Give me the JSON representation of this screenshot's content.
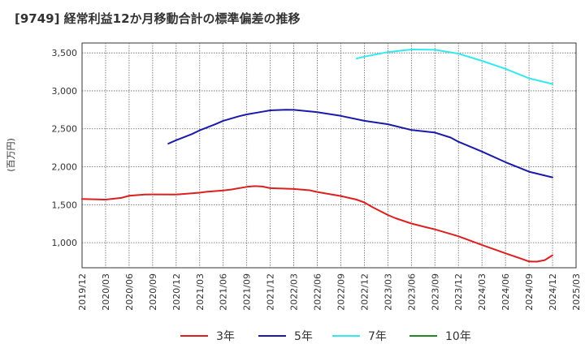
{
  "title": "[9749]  経常利益12か月移動合計の標準偏差の推移",
  "chart_data": {
    "type": "line",
    "title": "[9749]  経常利益12か月移動合計の標準偏差の推移",
    "ylabel": "(百万円)",
    "xlabel": "",
    "x_ticks": [
      "2019/12",
      "2020/03",
      "2020/06",
      "2020/09",
      "2020/12",
      "2021/03",
      "2021/06",
      "2021/09",
      "2021/12",
      "2022/03",
      "2022/06",
      "2022/09",
      "2022/12",
      "2023/03",
      "2023/06",
      "2023/09",
      "2023/12",
      "2024/03",
      "2024/06",
      "2024/09",
      "2024/12",
      "2025/03"
    ],
    "y_ticks": [
      "1,000",
      "1,500",
      "2,000",
      "2,500",
      "3,000",
      "3,500"
    ],
    "y_tick_values": [
      1000,
      1500,
      2000,
      2500,
      3000,
      3500
    ],
    "ylim": [
      670,
      3630
    ],
    "grid": true,
    "legend_position": "bottom",
    "series": [
      {
        "name": "3年",
        "color": "#dd1f1f",
        "points": [
          [
            "2019/12",
            1575
          ],
          [
            "2020/02",
            1570
          ],
          [
            "2020/03",
            1568
          ],
          [
            "2020/05",
            1590
          ],
          [
            "2020/06",
            1618
          ],
          [
            "2020/08",
            1635
          ],
          [
            "2020/09",
            1636
          ],
          [
            "2020/12",
            1635
          ],
          [
            "2021/03",
            1658
          ],
          [
            "2021/04",
            1672
          ],
          [
            "2021/06",
            1688
          ],
          [
            "2021/07",
            1700
          ],
          [
            "2021/09",
            1735
          ],
          [
            "2021/10",
            1745
          ],
          [
            "2021/11",
            1740
          ],
          [
            "2021/12",
            1718
          ],
          [
            "2022/03",
            1708
          ],
          [
            "2022/05",
            1690
          ],
          [
            "2022/06",
            1668
          ],
          [
            "2022/09",
            1615
          ],
          [
            "2022/11",
            1568
          ],
          [
            "2022/12",
            1530
          ],
          [
            "2023/01",
            1470
          ],
          [
            "2023/03",
            1365
          ],
          [
            "2023/04",
            1322
          ],
          [
            "2023/06",
            1252
          ],
          [
            "2023/08",
            1200
          ],
          [
            "2023/09",
            1175
          ],
          [
            "2023/12",
            1085
          ],
          [
            "2024/03",
            970
          ],
          [
            "2024/06",
            860
          ],
          [
            "2024/08",
            790
          ],
          [
            "2024/09",
            752
          ],
          [
            "2024/10",
            750
          ],
          [
            "2024/11",
            770
          ],
          [
            "2024/12",
            835
          ]
        ]
      },
      {
        "name": "5年",
        "color": "#1a1aaa",
        "points": [
          [
            "2020/11",
            2305
          ],
          [
            "2020/12",
            2350
          ],
          [
            "2021/02",
            2430
          ],
          [
            "2021/03",
            2480
          ],
          [
            "2021/05",
            2560
          ],
          [
            "2021/06",
            2605
          ],
          [
            "2021/08",
            2665
          ],
          [
            "2021/09",
            2690
          ],
          [
            "2021/11",
            2725
          ],
          [
            "2021/12",
            2743
          ],
          [
            "2022/02",
            2752
          ],
          [
            "2022/03",
            2750
          ],
          [
            "2022/06",
            2720
          ],
          [
            "2022/09",
            2670
          ],
          [
            "2022/12",
            2605
          ],
          [
            "2023/03",
            2560
          ],
          [
            "2023/06",
            2485
          ],
          [
            "2023/09",
            2450
          ],
          [
            "2023/11",
            2385
          ],
          [
            "2023/12",
            2330
          ],
          [
            "2024/03",
            2200
          ],
          [
            "2024/06",
            2060
          ],
          [
            "2024/09",
            1935
          ],
          [
            "2024/12",
            1860
          ]
        ]
      },
      {
        "name": "7年",
        "color": "#33e8ee",
        "points": [
          [
            "2022/11",
            3425
          ],
          [
            "2022/12",
            3450
          ],
          [
            "2023/03",
            3510
          ],
          [
            "2023/06",
            3545
          ],
          [
            "2023/09",
            3540
          ],
          [
            "2023/12",
            3490
          ],
          [
            "2024/03",
            3395
          ],
          [
            "2024/06",
            3290
          ],
          [
            "2024/09",
            3165
          ],
          [
            "2024/12",
            3090
          ]
        ]
      },
      {
        "name": "10年",
        "color": "#228822",
        "points": []
      }
    ]
  }
}
